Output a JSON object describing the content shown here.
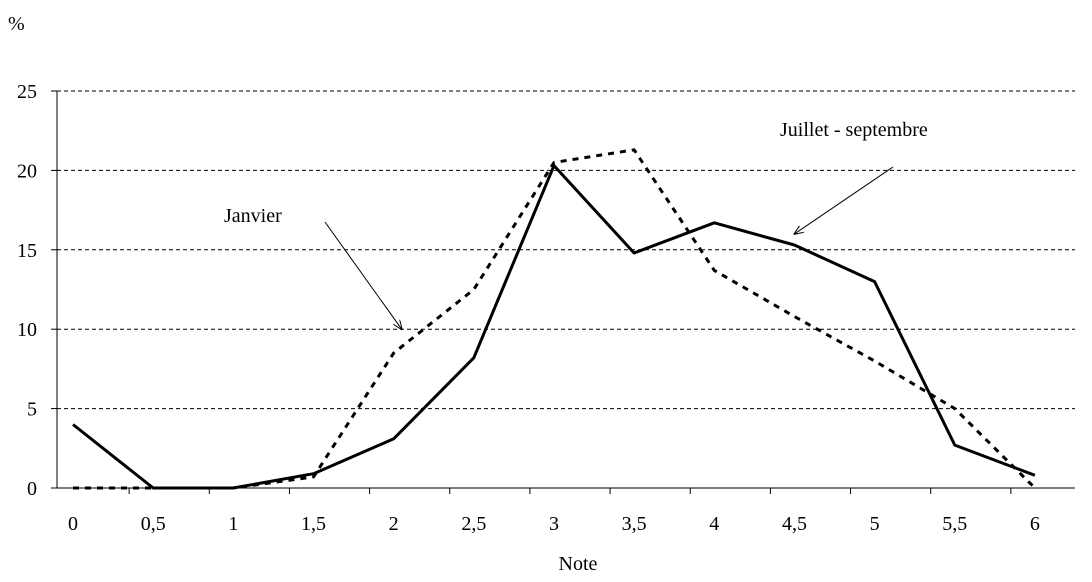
{
  "chart_data": {
    "type": "line",
    "title": "",
    "ylabel": "%",
    "xlabel": "Note",
    "ylim": [
      0,
      25
    ],
    "yticks": [
      0,
      5,
      10,
      15,
      20,
      25
    ],
    "grid": "horizontal dashed",
    "x_tick_labels": [
      "0",
      "0,5",
      "1",
      "1,5",
      "2",
      "2,5",
      "3",
      "3,5",
      "4",
      "4,5",
      "5",
      "5,5",
      "6"
    ],
    "x": [
      0,
      0.5,
      1,
      1.5,
      2,
      2.5,
      3,
      3.5,
      4,
      4.5,
      5,
      5.5,
      6
    ],
    "series": [
      {
        "key": "janvier",
        "values": [
          0,
          0,
          0,
          0.7,
          8.5,
          12.5,
          20.5,
          21.3,
          13.7,
          10.8,
          8.0,
          5.0,
          0
        ],
        "color": "#000000",
        "style": "dashed"
      },
      {
        "key": "juillet-septembre",
        "values": [
          4.0,
          0,
          0,
          0.9,
          3.1,
          8.2,
          20.3,
          14.8,
          16.7,
          15.3,
          13.0,
          2.7,
          0.8
        ],
        "color": "#000000",
        "style": "solid"
      }
    ],
    "annotations": [
      {
        "text": "Janvier",
        "target_series": "janvier",
        "target_x": 2.05,
        "target_y": 10.0
      },
      {
        "text": "Juillet - septembre",
        "target_series": "juillet-septembre",
        "target_x": 4.5,
        "target_y": 16.0
      }
    ]
  }
}
